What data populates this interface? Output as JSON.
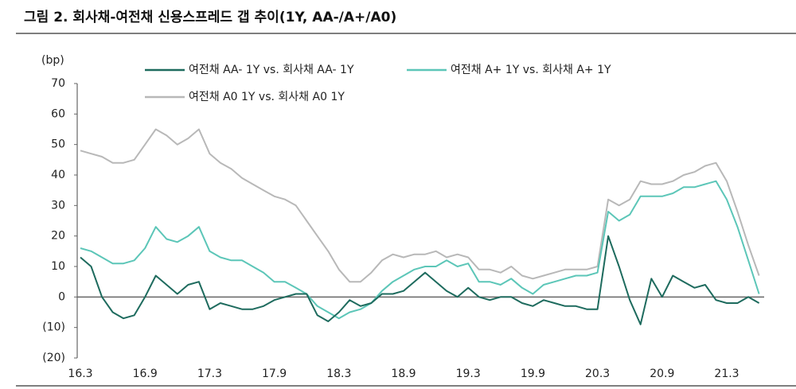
{
  "chart_data": {
    "type": "line",
    "title": "그림 2. 회사채-여전채 신용스프레드 갭 추이(1Y, AA-/A+/A0)",
    "y_label": "(bp)",
    "categories": [
      "16.3",
      null,
      null,
      null,
      null,
      null,
      "16.9",
      null,
      null,
      null,
      null,
      null,
      "17.3",
      null,
      null,
      null,
      null,
      null,
      "17.9",
      null,
      null,
      null,
      null,
      null,
      "18.3",
      null,
      null,
      null,
      null,
      null,
      "18.9",
      null,
      null,
      null,
      null,
      null,
      "19.3",
      null,
      null,
      null,
      null,
      null,
      "19.9",
      null,
      null,
      null,
      null,
      null,
      "20.3",
      null,
      null,
      null,
      null,
      null,
      "20.9",
      null,
      null,
      null,
      null,
      null,
      "21.3",
      null,
      null,
      null
    ],
    "series": [
      {
        "name": "여전채 AA- 1Y vs. 회사채 AA- 1Y",
        "color": "#1e6b5e",
        "values": [
          13,
          10,
          0,
          -5,
          -7,
          -6,
          0,
          7,
          4,
          1,
          4,
          5,
          -4,
          -2,
          -3,
          -4,
          -4,
          -3,
          -1,
          0,
          1,
          1,
          -6,
          -8,
          -5,
          -1,
          -3,
          -2,
          1,
          1,
          2,
          5,
          8,
          5,
          2,
          0,
          3,
          0,
          -1,
          0,
          0,
          -2,
          -3,
          -1,
          -2,
          -3,
          -3,
          -4,
          -4,
          20,
          10,
          -1,
          -9,
          6,
          0,
          7,
          5,
          3,
          4,
          -1,
          -2,
          -2,
          0,
          -2
        ]
      },
      {
        "name": "여전채 A+ 1Y vs. 회사채 A+ 1Y",
        "color": "#5cc6b8",
        "values": [
          16,
          15,
          13,
          11,
          11,
          12,
          16,
          23,
          19,
          18,
          20,
          23,
          15,
          13,
          12,
          12,
          10,
          8,
          5,
          5,
          3,
          1,
          -3,
          -5,
          -7,
          -5,
          -4,
          -2,
          2,
          5,
          7,
          9,
          10,
          10,
          12,
          10,
          11,
          5,
          5,
          4,
          6,
          3,
          1,
          4,
          5,
          6,
          7,
          7,
          8,
          28,
          25,
          27,
          33,
          33,
          33,
          34,
          36,
          36,
          37,
          38,
          32,
          23,
          12,
          1
        ]
      },
      {
        "name": "여전채 A0 1Y vs. 회사채 A0 1Y",
        "color": "#b8b8b8",
        "values": [
          48,
          47,
          46,
          44,
          44,
          45,
          50,
          55,
          53,
          50,
          52,
          55,
          47,
          44,
          42,
          39,
          37,
          35,
          33,
          32,
          30,
          25,
          20,
          15,
          9,
          5,
          5,
          8,
          12,
          14,
          13,
          14,
          14,
          15,
          13,
          14,
          13,
          9,
          9,
          8,
          10,
          7,
          6,
          7,
          8,
          9,
          9,
          9,
          10,
          32,
          30,
          32,
          38,
          37,
          37,
          38,
          40,
          41,
          43,
          44,
          38,
          28,
          17,
          7
        ]
      }
    ],
    "ylim": [
      -20,
      70
    ],
    "yticks": [
      {
        "value": -20,
        "label": "(20)"
      },
      {
        "value": -10,
        "label": "(10)"
      },
      0,
      10,
      20,
      30,
      40,
      50,
      60,
      70
    ],
    "grid": false
  }
}
